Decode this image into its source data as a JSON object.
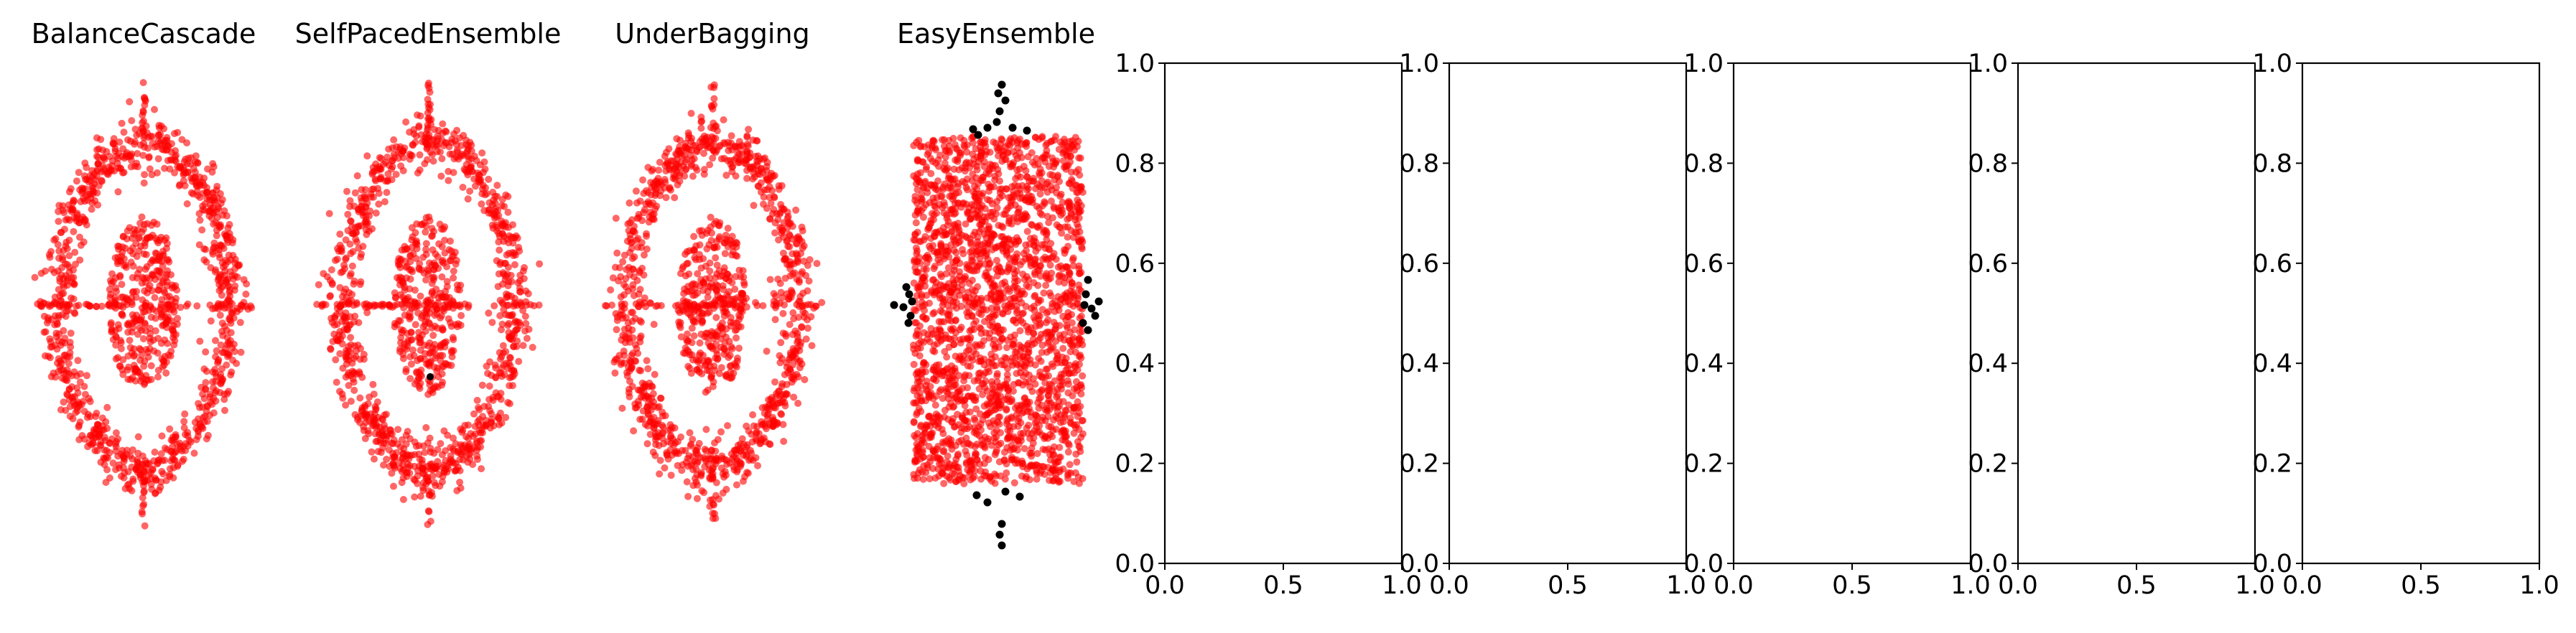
{
  "figure": {
    "background": "#ffffff"
  },
  "chart_data": [
    {
      "type": "scatter",
      "title": "BalanceCascade",
      "axes_visible": false,
      "series": [
        {
          "color": "#ff0000",
          "points": "ring-and-core"
        }
      ]
    },
    {
      "type": "scatter",
      "title": "SelfPacedEnsemble",
      "axes_visible": false,
      "series": [
        {
          "color": "#ff0000",
          "points": "ring-and-core"
        },
        {
          "color": "#000000",
          "points": "single-point"
        }
      ]
    },
    {
      "type": "scatter",
      "title": "UnderBagging",
      "axes_visible": false,
      "series": [
        {
          "color": "#ff0000",
          "points": "ring-and-core"
        }
      ]
    },
    {
      "type": "scatter",
      "title": "EasyEnsemble",
      "axes_visible": false,
      "series": [
        {
          "color": "#ff0000",
          "points": "dense-rectangle"
        },
        {
          "color": "#000000",
          "points": "edge-points"
        }
      ]
    },
    {
      "type": "scatter",
      "title": "",
      "xlim": [
        0.0,
        1.0
      ],
      "ylim": [
        0.0,
        1.0
      ],
      "xticks": [
        "0.0",
        "0.5",
        "1.0"
      ],
      "yticks": [
        "0.0",
        "0.2",
        "0.4",
        "0.6",
        "0.8",
        "1.0"
      ],
      "grid": false,
      "series": []
    },
    {
      "type": "scatter",
      "title": "",
      "xlim": [
        0.0,
        1.0
      ],
      "ylim": [
        0.0,
        1.0
      ],
      "xticks": [
        "0.0",
        "0.5",
        "1.0"
      ],
      "yticks": [
        "0.0",
        "0.2",
        "0.4",
        "0.6",
        "0.8",
        "1.0"
      ],
      "grid": false,
      "series": []
    },
    {
      "type": "scatter",
      "title": "",
      "xlim": [
        0.0,
        1.0
      ],
      "ylim": [
        0.0,
        1.0
      ],
      "xticks": [
        "0.0",
        "0.5",
        "1.0"
      ],
      "yticks": [
        "0.0",
        "0.2",
        "0.4",
        "0.6",
        "0.8",
        "1.0"
      ],
      "grid": false,
      "series": []
    },
    {
      "type": "scatter",
      "title": "",
      "xlim": [
        0.0,
        1.0
      ],
      "ylim": [
        0.0,
        1.0
      ],
      "xticks": [
        "0.0",
        "0.5",
        "1.0"
      ],
      "yticks": [
        "0.0",
        "0.2",
        "0.4",
        "0.6",
        "0.8",
        "1.0"
      ],
      "grid": false,
      "series": []
    },
    {
      "type": "scatter",
      "title": "",
      "xlim": [
        0.0,
        1.0
      ],
      "ylim": [
        0.0,
        1.0
      ],
      "xticks": [
        "0.0",
        "0.5",
        "1.0"
      ],
      "yticks": [
        "0.0",
        "0.2",
        "0.4",
        "0.6",
        "0.8",
        "1.0"
      ],
      "grid": false,
      "series": []
    }
  ]
}
